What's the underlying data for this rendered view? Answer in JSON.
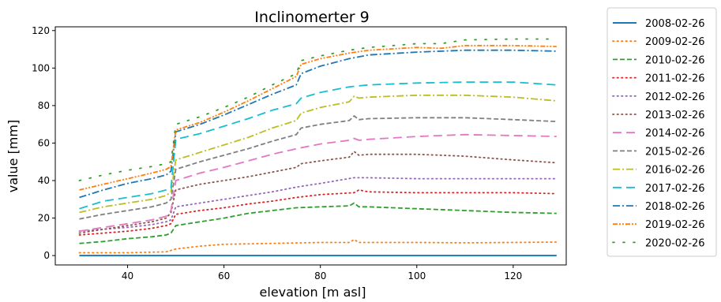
{
  "chart_data": {
    "type": "line",
    "title": "Inclinomerter 9",
    "xlabel": "elevation [m asl]",
    "ylabel": "value [mm]",
    "xlim": [
      25,
      131
    ],
    "ylim": [
      -5,
      122
    ],
    "xticks": [
      40,
      60,
      80,
      100,
      120
    ],
    "yticks": [
      0,
      20,
      40,
      60,
      80,
      100,
      120
    ],
    "grid": false,
    "legend_position": "outside-right",
    "series": [
      {
        "name": "2008-02-26",
        "color": "#1f77b4",
        "style": "solid",
        "x": [
          30,
          129
        ],
        "y": [
          0,
          0
        ]
      },
      {
        "name": "2009-02-26",
        "color": "#ff7f0e",
        "style": "dotted",
        "x": [
          30,
          40,
          48,
          50,
          55,
          60,
          70,
          80,
          86,
          87,
          88,
          100,
          110,
          120,
          129
        ],
        "y": [
          1.5,
          1.5,
          2,
          3.5,
          5,
          6,
          6.5,
          7,
          7,
          8.5,
          7,
          7,
          6.8,
          7,
          7.2
        ]
      },
      {
        "name": "2010-02-26",
        "color": "#2ca02c",
        "style": "dashed",
        "x": [
          30,
          35,
          40,
          45,
          48,
          49,
          50,
          55,
          60,
          65,
          70,
          75,
          80,
          86,
          87,
          88,
          90,
          100,
          110,
          120,
          129
        ],
        "y": [
          6.5,
          7.5,
          9,
          10,
          11,
          12,
          16,
          18,
          20,
          22.5,
          24,
          25.5,
          26,
          26.5,
          28,
          26,
          26,
          25,
          24,
          23,
          22.5
        ]
      },
      {
        "name": "2011-02-26",
        "color": "#d62728",
        "style": "dotted",
        "x": [
          30,
          35,
          40,
          45,
          48,
          49,
          50,
          55,
          60,
          65,
          70,
          75,
          80,
          87,
          88,
          90,
          100,
          110,
          120,
          129
        ],
        "y": [
          11,
          12,
          13,
          14.5,
          16,
          17,
          22,
          24,
          25.5,
          27.5,
          29,
          31,
          32.5,
          33.5,
          35,
          34,
          33.5,
          33.5,
          33.5,
          33
        ]
      },
      {
        "name": "2012-02-26",
        "color": "#9467bd",
        "style": "dotted",
        "x": [
          30,
          35,
          40,
          45,
          48,
          49,
          50,
          55,
          60,
          65,
          70,
          75,
          80,
          87,
          90,
          100,
          110,
          120,
          129
        ],
        "y": [
          13,
          14,
          15,
          16.5,
          18,
          19,
          26,
          28,
          30,
          32,
          34,
          36.5,
          38.5,
          41.5,
          41.5,
          41,
          41,
          41,
          41
        ]
      },
      {
        "name": "2013-02-26",
        "color": "#8c564b",
        "style": "dotted",
        "x": [
          30,
          35,
          40,
          45,
          48,
          49,
          50,
          55,
          60,
          65,
          70,
          75,
          76,
          80,
          86,
          87,
          88,
          90,
          100,
          110,
          120,
          129
        ],
        "y": [
          12,
          14,
          16,
          18,
          20,
          23,
          35,
          38,
          40,
          42,
          44.5,
          47,
          49,
          50.5,
          52.5,
          55.5,
          53.5,
          54,
          54,
          53,
          51,
          49.5
        ]
      },
      {
        "name": "2014-02-26",
        "color": "#e377c2",
        "style": "longdash",
        "x": [
          30,
          35,
          40,
          45,
          48,
          49,
          50,
          55,
          60,
          65,
          70,
          75,
          80,
          86,
          87,
          88,
          90,
          100,
          110,
          120,
          129
        ],
        "y": [
          13,
          15,
          17,
          19,
          21,
          24,
          40,
          44,
          47,
          50.5,
          54,
          57,
          59.5,
          61.5,
          62.5,
          61.5,
          62,
          63.5,
          64.5,
          64,
          63.5
        ]
      },
      {
        "name": "2015-02-26",
        "color": "#7f7f7f",
        "style": "dashed",
        "x": [
          30,
          35,
          40,
          45,
          48,
          49,
          50,
          55,
          60,
          65,
          70,
          75,
          76,
          80,
          86,
          87,
          88,
          90,
          100,
          110,
          120,
          129
        ],
        "y": [
          19.5,
          22,
          24,
          26,
          28,
          30,
          46,
          50,
          53.5,
          57,
          61,
          64.5,
          68,
          70,
          72,
          74.5,
          72.5,
          73,
          73.5,
          73.5,
          72.5,
          71.5
        ]
      },
      {
        "name": "2016-02-26",
        "color": "#bcbd22",
        "style": "dashdot",
        "x": [
          30,
          35,
          40,
          45,
          48,
          49,
          50,
          55,
          60,
          65,
          70,
          75,
          76,
          80,
          86,
          87,
          88,
          90,
          100,
          110,
          120,
          129
        ],
        "y": [
          23,
          26,
          28,
          30,
          32,
          34,
          51,
          55,
          59,
          63,
          68,
          72,
          76,
          79,
          82,
          85,
          84,
          84.5,
          85.5,
          85.5,
          84.5,
          82.5
        ]
      },
      {
        "name": "2017-02-26",
        "color": "#17becf",
        "style": "longdash",
        "x": [
          30,
          35,
          40,
          45,
          48,
          49,
          50,
          55,
          60,
          65,
          70,
          75,
          76,
          80,
          86,
          90,
          100,
          110,
          120,
          129
        ],
        "y": [
          25,
          29,
          31,
          33,
          35,
          36,
          62,
          65,
          69,
          73,
          77.5,
          81,
          84,
          87,
          90,
          91,
          92,
          92.5,
          92.5,
          91
        ]
      },
      {
        "name": "2018-02-26",
        "color": "#1f77b4",
        "style": "dashdot",
        "x": [
          30,
          35,
          40,
          45,
          48,
          49,
          50,
          55,
          60,
          65,
          70,
          75,
          76,
          80,
          86,
          90,
          100,
          110,
          120,
          129
        ],
        "y": [
          31,
          35,
          38.5,
          41,
          43,
          45,
          66,
          70,
          75,
          80.5,
          86,
          91,
          97,
          101,
          105,
          107,
          108.5,
          109.5,
          109.5,
          109
        ]
      },
      {
        "name": "2019-02-26",
        "color": "#ff7f0e",
        "style": "dashdotdot",
        "x": [
          30,
          35,
          40,
          45,
          48,
          49,
          50,
          55,
          60,
          65,
          70,
          75,
          76,
          80,
          86,
          90,
          100,
          105,
          110,
          120,
          129
        ],
        "y": [
          35,
          38,
          41,
          44,
          46,
          47.5,
          67,
          71,
          76.5,
          82.5,
          89,
          95.5,
          102,
          105,
          108,
          109.5,
          111,
          110.5,
          112,
          112,
          111.5
        ]
      },
      {
        "name": "2020-02-26",
        "color": "#2ca02c",
        "style": "sparse",
        "x": [
          30,
          35,
          40,
          45,
          48,
          49,
          50,
          55,
          60,
          65,
          70,
          75,
          76,
          80,
          86,
          90,
          100,
          105,
          110,
          120,
          129
        ],
        "y": [
          40,
          43,
          45.5,
          47.5,
          49,
          50,
          70,
          74,
          79,
          84.5,
          91,
          97,
          104,
          106.5,
          109.5,
          111,
          113,
          113,
          115,
          115.5,
          115.5
        ]
      }
    ]
  }
}
